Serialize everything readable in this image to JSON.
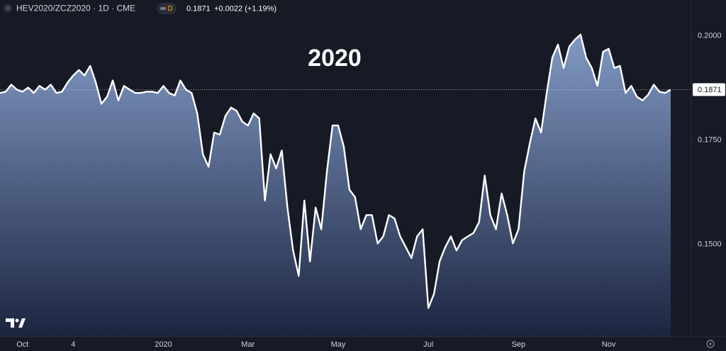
{
  "chart_data": {
    "type": "area",
    "title": "HEV2020/ZCZ2020 · 1D · CME",
    "symbol_icon": "H",
    "interval_badge": "D",
    "last_price": {
      "value": 0.1871,
      "label": "0.1871"
    },
    "change": "+0.0022 (+1.19%)",
    "annotation": "2020",
    "categories": [
      null,
      null,
      null,
      null,
      "Oct",
      null,
      null,
      null,
      null,
      null,
      null,
      null,
      null,
      "4",
      null,
      null,
      null,
      null,
      null,
      null,
      null,
      null,
      null,
      null,
      null,
      null,
      null,
      null,
      null,
      "2020",
      null,
      null,
      null,
      null,
      null,
      null,
      null,
      null,
      null,
      null,
      null,
      null,
      null,
      null,
      "Mar",
      null,
      null,
      null,
      null,
      null,
      null,
      null,
      null,
      null,
      null,
      null,
      null,
      null,
      null,
      null,
      "May",
      null,
      null,
      null,
      null,
      null,
      null,
      null,
      null,
      null,
      null,
      null,
      null,
      null,
      null,
      null,
      "Jul",
      null,
      null,
      null,
      null,
      null,
      null,
      null,
      null,
      null,
      null,
      null,
      null,
      null,
      null,
      null,
      "Sep",
      null,
      null,
      null,
      null,
      null,
      null,
      null,
      null,
      null,
      null,
      null,
      null,
      null,
      null,
      null,
      "Nov",
      null,
      null,
      null,
      null,
      null,
      null,
      null,
      null,
      null,
      null,
      null
    ],
    "values": [
      0.1863,
      0.1866,
      0.1883,
      0.1871,
      0.1866,
      0.1876,
      0.1863,
      0.188,
      0.1871,
      0.1883,
      0.1863,
      0.1866,
      0.1888,
      0.1905,
      0.1918,
      0.1905,
      0.1928,
      0.1888,
      0.1837,
      0.1854,
      0.1893,
      0.1845,
      0.188,
      0.1871,
      0.1863,
      0.1863,
      0.1866,
      0.1866,
      0.1863,
      0.188,
      0.1863,
      0.1857,
      0.1893,
      0.1871,
      0.1863,
      0.1814,
      0.1716,
      0.1686,
      0.1768,
      0.1763,
      0.1808,
      0.1828,
      0.182,
      0.1794,
      0.1785,
      0.1814,
      0.1802,
      0.1605,
      0.1716,
      0.1682,
      0.1725,
      0.1588,
      0.1485,
      0.1424,
      0.1605,
      0.1459,
      0.1588,
      0.1536,
      0.1674,
      0.1785,
      0.1785,
      0.1734,
      0.1631,
      0.1613,
      0.1536,
      0.157,
      0.157,
      0.1502,
      0.1519,
      0.157,
      0.1562,
      0.1519,
      0.1493,
      0.1467,
      0.1519,
      0.1536,
      0.1347,
      0.1381,
      0.1459,
      0.1493,
      0.1519,
      0.1485,
      0.151,
      0.1519,
      0.1527,
      0.1553,
      0.1665,
      0.157,
      0.1536,
      0.1622,
      0.157,
      0.1502,
      0.1536,
      0.1674,
      0.1742,
      0.1802,
      0.1768,
      0.1863,
      0.1948,
      0.1979,
      0.1923,
      0.1974,
      0.1991,
      0.2003,
      0.1948,
      0.1923,
      0.188,
      0.1962,
      0.1969,
      0.1923,
      0.1928,
      0.1863,
      0.188,
      0.1854,
      0.1845,
      0.1859,
      0.1883,
      0.1866,
      0.1863,
      0.1871
    ],
    "color": "#ffffff",
    "fill_top": "#8199c4",
    "fill_bottom": "#1c2540",
    "ylim": [
      0.1278,
      0.2086
    ],
    "yticks": [
      {
        "value": 0.15,
        "label": "0.1500"
      },
      {
        "value": 0.175,
        "label": "0.1750"
      },
      {
        "value": 0.2,
        "label": "0.2000"
      }
    ],
    "grid": false
  }
}
